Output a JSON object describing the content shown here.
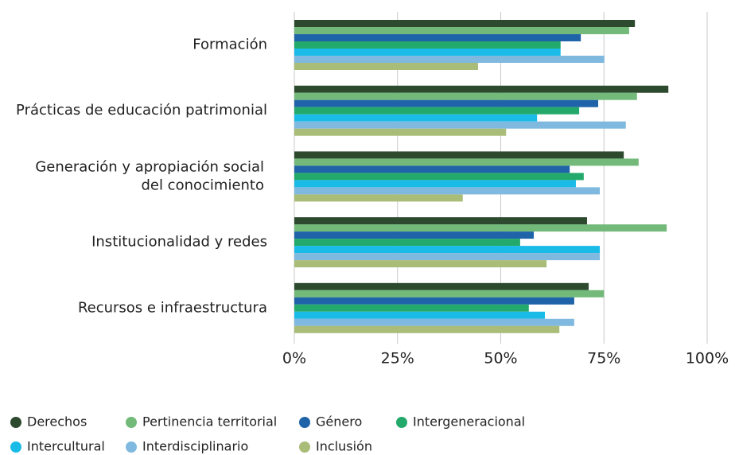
{
  "chart_data": {
    "type": "bar",
    "orientation": "horizontal",
    "categories": [
      "Formación",
      "Prácticas de educación patrimonial",
      "Generación y apropiación social\ndel conocimiento",
      "Institucionalidad y redes",
      "Recursos e infraestructura"
    ],
    "series": [
      {
        "name": "Derechos",
        "color": "#2d4a2f",
        "values": [
          82.5,
          90.6,
          79.8,
          70.9,
          71.3
        ]
      },
      {
        "name": "Pertinencia territorial",
        "color": "#72b97a",
        "values": [
          81.1,
          83.0,
          83.4,
          90.2,
          75.0
        ]
      },
      {
        "name": "Género",
        "color": "#1f63a8",
        "values": [
          69.4,
          73.6,
          66.7,
          58.0,
          67.8
        ]
      },
      {
        "name": "Intergeneracional",
        "color": "#23a96b",
        "values": [
          64.5,
          69.0,
          70.1,
          54.7,
          56.8
        ]
      },
      {
        "name": "Intercultural",
        "color": "#1bbbe8",
        "values": [
          64.5,
          58.8,
          68.2,
          74.0,
          60.7
        ]
      },
      {
        "name": "Interdisciplinario",
        "color": "#80b9df",
        "values": [
          75.1,
          80.3,
          74.0,
          74.0,
          67.8
        ]
      },
      {
        "name": "Inclusión",
        "color": "#a9bc78",
        "values": [
          44.5,
          51.3,
          40.8,
          61.1,
          64.2
        ]
      }
    ],
    "xlim": [
      0,
      100
    ],
    "xticks": [
      {
        "value": 0,
        "label": "0%"
      },
      {
        "value": 25,
        "label": "25%"
      },
      {
        "value": 50,
        "label": "50%"
      },
      {
        "value": 75,
        "label": "75%"
      },
      {
        "value": 100,
        "label": "100%"
      }
    ],
    "grid": true
  }
}
